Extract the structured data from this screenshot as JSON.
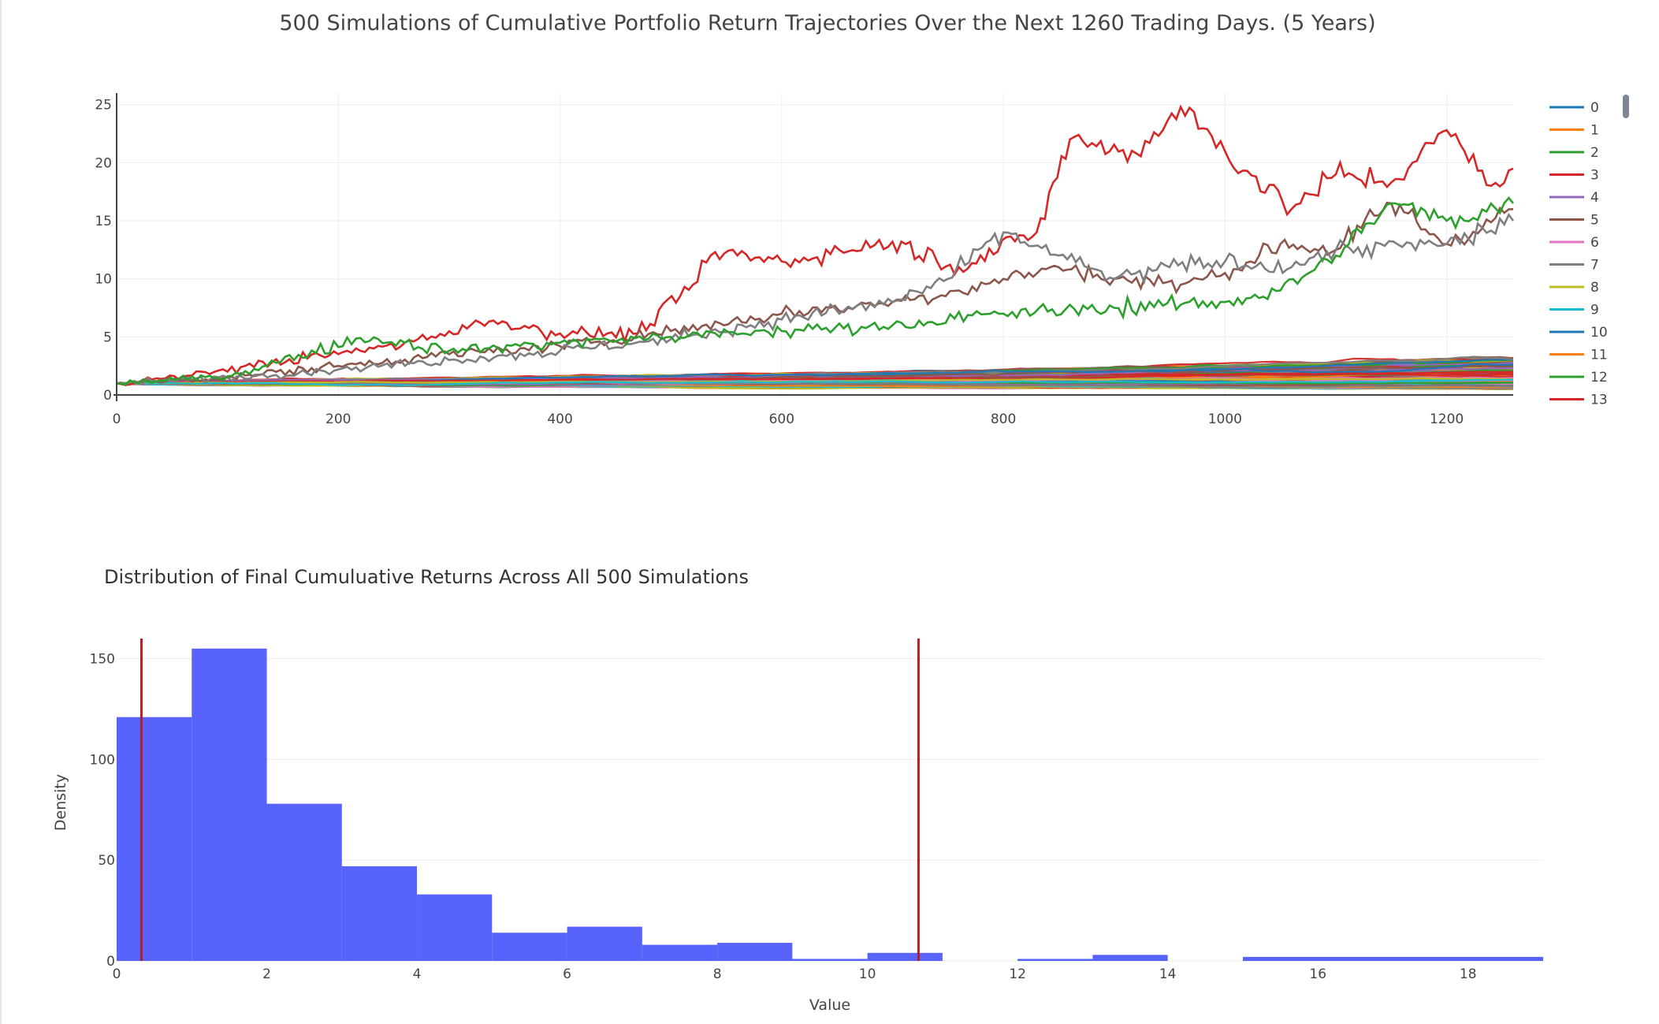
{
  "colors": {
    "palette": [
      "#1f77b4",
      "#ff7f0e",
      "#2ca02c",
      "#d62728",
      "#9467bd",
      "#8c564b",
      "#e377c2",
      "#7f7f7f",
      "#bcbd22",
      "#17becf"
    ],
    "histogram_bar": "#5763fb",
    "reference_line": "#b22222",
    "gridline": "#eeeeee"
  },
  "chart_data": [
    {
      "type": "line",
      "title": "500 Simulations of Cumulative Portfolio Return Trajectories Over the Next 1260 Trading Days. (5 Years)",
      "xlabel": "",
      "ylabel": "",
      "xlim": [
        0,
        1260
      ],
      "ylim": [
        0,
        26
      ],
      "x_ticks": [
        "0",
        "200",
        "400",
        "600",
        "800",
        "1000",
        "1200"
      ],
      "y_ticks": [
        "0",
        "5",
        "10",
        "15",
        "20",
        "25"
      ],
      "grid": true,
      "legend_position": "right",
      "series_count": 500,
      "legend_entries": [
        "0",
        "1",
        "2",
        "3",
        "4",
        "5",
        "6",
        "7",
        "8",
        "9",
        "10",
        "11",
        "12",
        "13"
      ],
      "highlight_series": [
        {
          "x": [
            0,
            60,
            140,
            220,
            260,
            340,
            400,
            470,
            520,
            540,
            600,
            700,
            760,
            830,
            860,
            920,
            960,
            1000,
            1060,
            1100,
            1150,
            1200,
            1240,
            1260
          ],
          "y": [
            1,
            1.6,
            2.8,
            3.8,
            4.5,
            6.4,
            5.3,
            5.3,
            9.5,
            12.3,
            11.5,
            13.2,
            11,
            14,
            22,
            20.8,
            24.8,
            21,
            16,
            19,
            18.3,
            22.8,
            18,
            19.5
          ]
        },
        {
          "x": [
            0,
            100,
            200,
            300,
            400,
            500,
            600,
            700,
            760,
            800,
            850,
            900,
            960,
            1000,
            1050,
            1100,
            1150,
            1200,
            1260
          ],
          "y": [
            1,
            1.5,
            2.5,
            3.5,
            4.2,
            5.5,
            7,
            8,
            9,
            10,
            11,
            10,
            9.5,
            10.5,
            13,
            12.5,
            16.5,
            13,
            16
          ]
        },
        {
          "x": [
            0,
            100,
            200,
            300,
            400,
            500,
            600,
            700,
            750,
            800,
            850,
            900,
            950,
            1000,
            1060,
            1100,
            1200,
            1260
          ],
          "y": [
            1,
            1.5,
            2.2,
            3,
            3.8,
            4.8,
            6.5,
            8,
            10,
            14,
            12,
            10,
            11,
            11.5,
            11,
            12.5,
            13,
            15
          ]
        },
        {
          "x": [
            0,
            100,
            220,
            260,
            300,
            400,
            500,
            600,
            700,
            800,
            900,
            1000,
            1050,
            1100,
            1150,
            1200,
            1260
          ],
          "y": [
            1,
            1.6,
            4.9,
            4.5,
            3.8,
            4.5,
            5,
            5.5,
            6,
            7,
            7.5,
            8,
            9,
            12,
            16.5,
            15,
            16.5
          ]
        }
      ]
    },
    {
      "type": "bar",
      "title": "Distribution of Final Cumuluative Returns Across All 500 Simulations",
      "xlabel": "Value",
      "ylabel": "Density",
      "xlim": [
        0,
        19
      ],
      "ylim": [
        0,
        160
      ],
      "x_ticks": [
        "0",
        "2",
        "4",
        "6",
        "8",
        "10",
        "12",
        "14",
        "16",
        "18"
      ],
      "y_ticks": [
        "0",
        "50",
        "100",
        "150"
      ],
      "grid": true,
      "bins": [
        {
          "x0": 0,
          "x1": 1,
          "value": 121
        },
        {
          "x0": 1,
          "x1": 2,
          "value": 155
        },
        {
          "x0": 2,
          "x1": 3,
          "value": 78
        },
        {
          "x0": 3,
          "x1": 4,
          "value": 47
        },
        {
          "x0": 4,
          "x1": 5,
          "value": 33
        },
        {
          "x0": 5,
          "x1": 6,
          "value": 14
        },
        {
          "x0": 6,
          "x1": 7,
          "value": 17
        },
        {
          "x0": 7,
          "x1": 8,
          "value": 8
        },
        {
          "x0": 8,
          "x1": 9,
          "value": 9
        },
        {
          "x0": 9,
          "x1": 10,
          "value": 1
        },
        {
          "x0": 10,
          "x1": 11,
          "value": 4
        },
        {
          "x0": 12,
          "x1": 13,
          "value": 1
        },
        {
          "x0": 13,
          "x1": 14,
          "value": 3
        },
        {
          "x0": 15,
          "x1": 19,
          "value": 2
        }
      ],
      "vertical_lines": [
        0.33,
        10.68
      ]
    }
  ]
}
